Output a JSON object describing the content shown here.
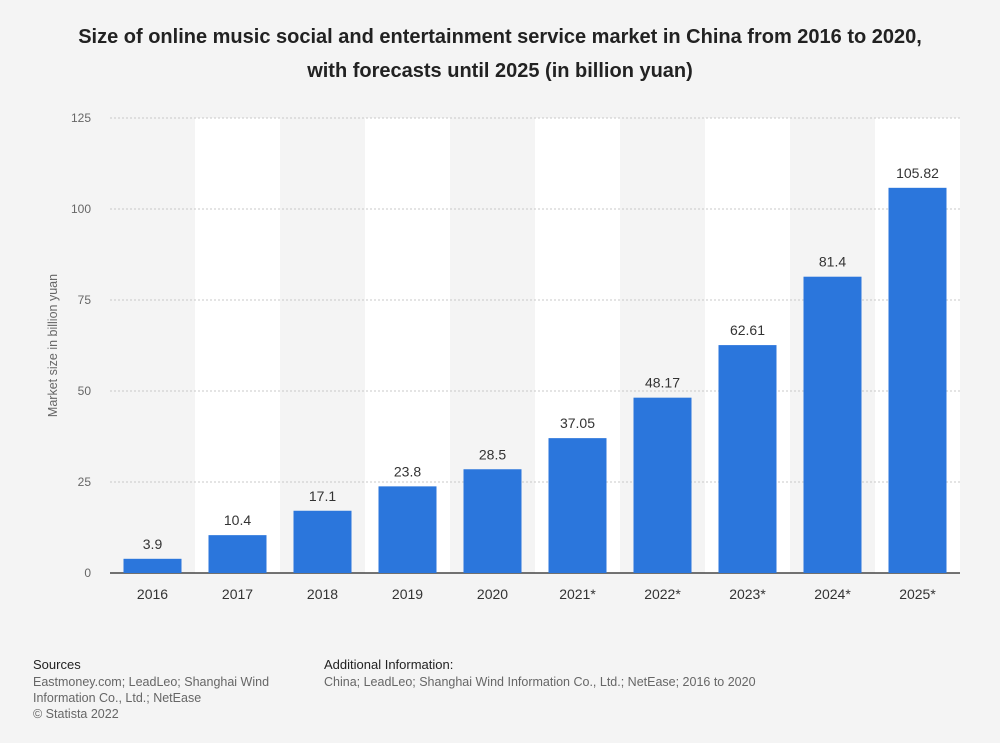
{
  "title": "Size of online music social and entertainment service market in China from 2016 to 2020, with forecasts until 2025 (in billion yuan)",
  "chart_data": {
    "type": "bar",
    "categories": [
      "2016",
      "2017",
      "2018",
      "2019",
      "2020",
      "2021*",
      "2022*",
      "2023*",
      "2024*",
      "2025*"
    ],
    "values": [
      3.9,
      10.4,
      17.1,
      23.8,
      28.5,
      37.05,
      48.17,
      62.61,
      81.4,
      105.82
    ],
    "value_labels": [
      "3.9",
      "10.4",
      "17.1",
      "23.8",
      "28.5",
      "37.05",
      "48.17",
      "62.61",
      "81.4",
      "105.82"
    ],
    "xlabel": "",
    "ylabel": "Market size in billion yuan",
    "ylim": [
      0,
      125
    ],
    "yticks": [
      "0",
      "25",
      "50",
      "75",
      "100",
      "125"
    ],
    "grid": true,
    "bar_color": "#2b76dc"
  },
  "footer": {
    "sources_header": "Sources",
    "sources_lines": [
      "Eastmoney.com; LeadLeo; Shanghai Wind",
      "Information Co., Ltd.; NetEase",
      "© Statista 2022"
    ],
    "info_header": "Additional Information:",
    "info_lines": [
      "China; LeadLeo; Shanghai Wind Information Co., Ltd.; NetEase; 2016 to 2020"
    ]
  }
}
